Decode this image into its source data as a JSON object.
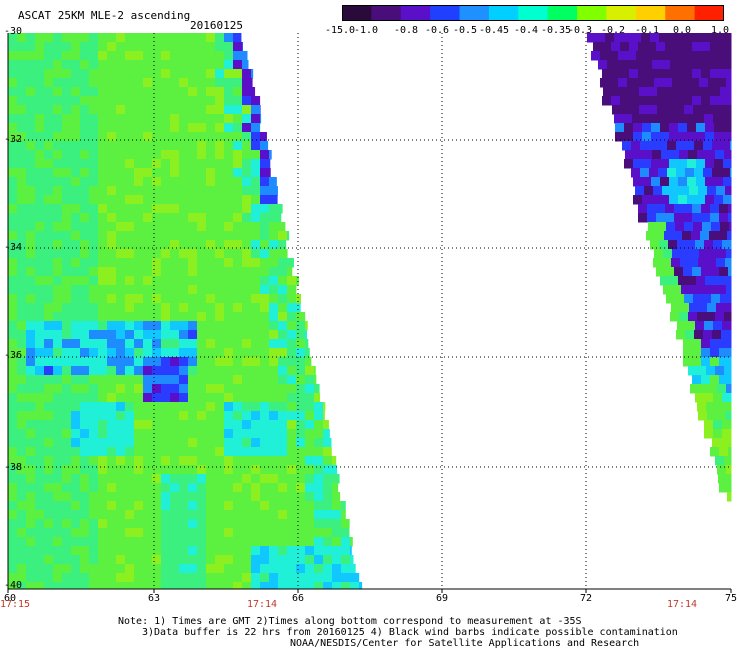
{
  "title": "ASCAT 25KM MLE-2 ascending",
  "date": "20160125",
  "colorbar": {
    "labels": [
      "-15.0",
      "-1.0",
      "-0.8",
      "-0.6",
      "-0.5",
      "-0.45",
      "-0.4",
      "-0.35",
      "-0.3",
      "-0.2",
      "-0.1",
      "0.0",
      "1.0"
    ],
    "colors": [
      "#2a0a3a",
      "#4a0e7a",
      "#5a10c8",
      "#2040ff",
      "#1e90ff",
      "#00d0ff",
      "#00ffd0",
      "#00ff60",
      "#80ff00",
      "#d8f000",
      "#ffd000",
      "#ff7000",
      "#ff2000"
    ]
  },
  "lat_labels": [
    "-30",
    "-32",
    "-34",
    "-36",
    "-38",
    "-40"
  ],
  "lon_labels": [
    "60",
    "63",
    "66",
    "69",
    "72",
    "75"
  ],
  "times": [
    "17:15",
    "17:14",
    "17:14"
  ],
  "notes": [
    "Note: 1) Times are GMT 2)Times along bottom correspond to measurement at -35S",
    "3)Data buffer is 22 hrs from 20160125 4) Black wind barbs indicate possible contamination",
    "NOAA/NESDIS/Center for Satellite Applications and Research"
  ]
}
